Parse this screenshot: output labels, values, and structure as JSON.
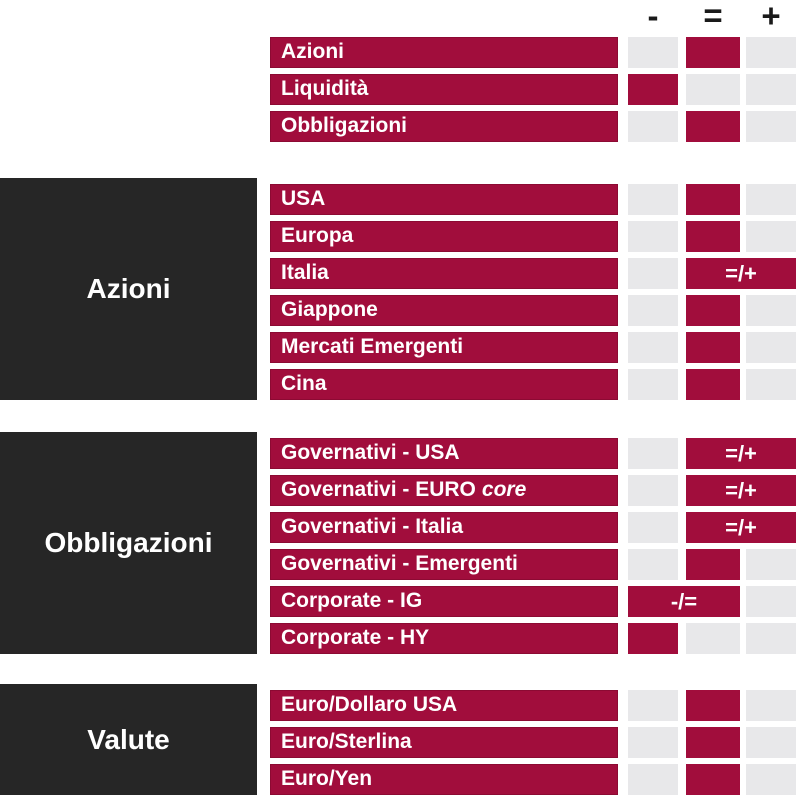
{
  "colors": {
    "maroon": "#A10D3C",
    "dark_box": "#262626",
    "empty_cell": "#E8E8EA",
    "bar_text": "#FFFFFF",
    "header_text": "#1A1A1A"
  },
  "header": {
    "minus": "-",
    "equal": "=",
    "plus": "+"
  },
  "groups": [
    {
      "label": "",
      "rows": [
        {
          "label": "Azioni",
          "rating": "="
        },
        {
          "label": "Liquidità",
          "rating": "-"
        },
        {
          "label": "Obbligazioni",
          "rating": "="
        }
      ]
    },
    {
      "label": "Azioni",
      "rows": [
        {
          "label": "USA",
          "rating": "="
        },
        {
          "label": "Europa",
          "rating": "="
        },
        {
          "label": "Italia",
          "rating": "=/+"
        },
        {
          "label": "Giappone",
          "rating": "="
        },
        {
          "label": "Mercati Emergenti",
          "rating": "="
        },
        {
          "label": "Cina",
          "rating": "="
        }
      ]
    },
    {
      "label": "Obbligazioni",
      "rows": [
        {
          "label": "Governativi - USA",
          "rating": "=/+"
        },
        {
          "label": "Governativi - EURO",
          "label_italic": "core",
          "rating": "=/+"
        },
        {
          "label": "Governativi - Italia",
          "rating": "=/+"
        },
        {
          "label": "Governativi - Emergenti",
          "rating": "="
        },
        {
          "label": "Corporate - IG",
          "rating": "-/="
        },
        {
          "label": "Corporate - HY",
          "rating": "-"
        }
      ]
    },
    {
      "label": "Valute",
      "rows": [
        {
          "label": "Euro/Dollaro USA",
          "rating": "="
        },
        {
          "label": "Euro/Sterlina",
          "rating": "="
        },
        {
          "label": "Euro/Yen",
          "rating": "="
        }
      ]
    }
  ],
  "chart_data": {
    "type": "table",
    "title": "",
    "columns": [
      "-",
      "=",
      "+"
    ],
    "legend_position": "top-right",
    "rows": [
      {
        "group": "",
        "asset": "Azioni",
        "rating": "="
      },
      {
        "group": "",
        "asset": "Liquidità",
        "rating": "-"
      },
      {
        "group": "",
        "asset": "Obbligazioni",
        "rating": "="
      },
      {
        "group": "Azioni",
        "asset": "USA",
        "rating": "="
      },
      {
        "group": "Azioni",
        "asset": "Europa",
        "rating": "="
      },
      {
        "group": "Azioni",
        "asset": "Italia",
        "rating": "=/+"
      },
      {
        "group": "Azioni",
        "asset": "Giappone",
        "rating": "="
      },
      {
        "group": "Azioni",
        "asset": "Mercati Emergenti",
        "rating": "="
      },
      {
        "group": "Azioni",
        "asset": "Cina",
        "rating": "="
      },
      {
        "group": "Obbligazioni",
        "asset": "Governativi - USA",
        "rating": "=/+"
      },
      {
        "group": "Obbligazioni",
        "asset": "Governativi - EURO core",
        "rating": "=/+"
      },
      {
        "group": "Obbligazioni",
        "asset": "Governativi - Italia",
        "rating": "=/+"
      },
      {
        "group": "Obbligazioni",
        "asset": "Governativi - Emergenti",
        "rating": "="
      },
      {
        "group": "Obbligazioni",
        "asset": "Corporate - IG",
        "rating": "-/="
      },
      {
        "group": "Obbligazioni",
        "asset": "Corporate - HY",
        "rating": "-"
      },
      {
        "group": "Valute",
        "asset": "Euro/Dollaro USA",
        "rating": "="
      },
      {
        "group": "Valute",
        "asset": "Euro/Sterlina",
        "rating": "="
      },
      {
        "group": "Valute",
        "asset": "Euro/Yen",
        "rating": "="
      }
    ]
  }
}
